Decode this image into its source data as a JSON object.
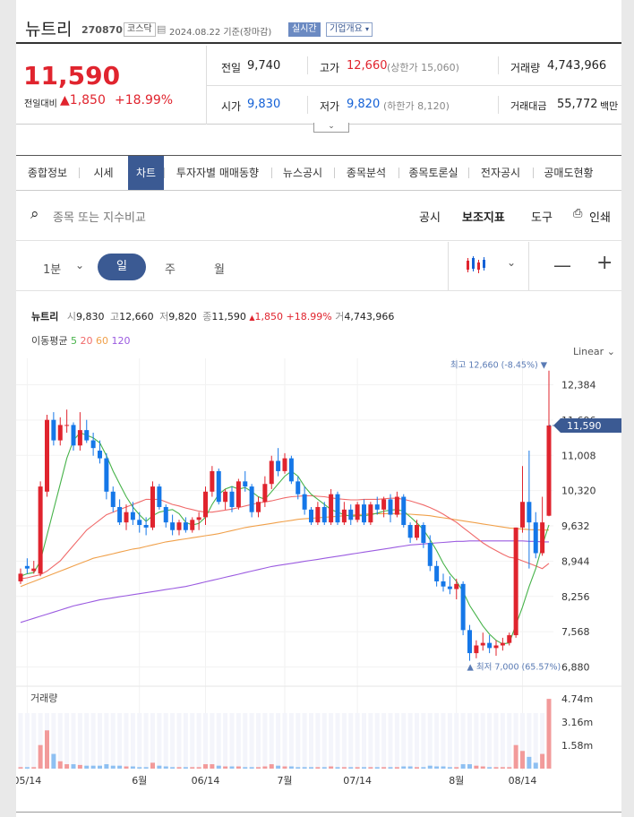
{
  "stock": {
    "name": "뉴트리",
    "code": "270870",
    "market": "코스닥",
    "date_basis": "2024.08.22 기준(장마감)",
    "realtime": "실시간",
    "company_info": "기업개요"
  },
  "quote": {
    "price": "11,590",
    "change_label": "전일대비",
    "change": "1,850",
    "change_pct": "+18.99%",
    "prev_label": "전일",
    "prev": "9,740",
    "high_label": "고가",
    "high": "12,660",
    "upper_limit": "(상한가 15,060)",
    "volume_label": "거래량",
    "volume": "4,743,966",
    "open_label": "시가",
    "open": "9,830",
    "low_label": "저가",
    "low": "9,820",
    "lower_limit": "(하한가 8,120)",
    "amount_label": "거래대금",
    "amount": "55,772",
    "amount_unit": "백만"
  },
  "tabs": [
    "종합정보",
    "시세",
    "차트",
    "투자자별 매매동향",
    "뉴스공시",
    "종목분석",
    "종목토론실",
    "전자공시",
    "공매도현황"
  ],
  "active_tab": "차트",
  "toolbar": {
    "search_placeholder": "종목 또는 지수비교",
    "notice": "공시",
    "indicator": "보조지표",
    "tools": "도구",
    "print": "인쇄"
  },
  "periods": {
    "minute": "1분",
    "day": "일",
    "week": "주",
    "month": "월"
  },
  "chart_header": {
    "name": "뉴트리",
    "open_label": "시",
    "open": "9,830",
    "high_label": "고",
    "high": "12,660",
    "low_label": "저",
    "low": "9,820",
    "close_label": "종",
    "close": "11,590",
    "change": "1,850",
    "pct": "+18.99%",
    "vol_label": "거",
    "vol": "4,743,966"
  },
  "ma": {
    "label": "이동평균",
    "periods": [
      "5",
      "20",
      "60",
      "120"
    ],
    "colors": [
      "#47b34a",
      "#f06a6a",
      "#f0a04a",
      "#9b5be0"
    ]
  },
  "scale_mode": "Linear",
  "chart_data": {
    "type": "candlestick",
    "y_ticks": [
      "12,384",
      "11,696",
      "11,008",
      "10,320",
      "9,632",
      "8,944",
      "8,256",
      "7,568",
      "6,880"
    ],
    "y_tick_values": [
      12384,
      11696,
      11008,
      10320,
      9632,
      8944,
      8256,
      7568,
      6880
    ],
    "ylim": [
      6610,
      12900
    ],
    "current_price": "11,590",
    "current_value": 11590,
    "max_label": "최고 12,660 (-8.45%)",
    "max_value": 12660,
    "min_label": "최저 7,000 (65.57%)",
    "min_value": 7000,
    "x_ticks": [
      "05/14",
      "6월",
      "06/14",
      "7월",
      "07/14",
      "8월",
      "08/14"
    ],
    "x_tick_index": [
      1,
      18,
      28,
      40,
      51,
      66,
      76
    ],
    "ohlc": [
      [
        8550,
        8800,
        8500,
        8700
      ],
      [
        8850,
        9000,
        8700,
        8800
      ],
      [
        8750,
        8950,
        8700,
        8800
      ],
      [
        8700,
        10500,
        8650,
        10400
      ],
      [
        10300,
        11800,
        10200,
        11700
      ],
      [
        11700,
        11850,
        11200,
        11300
      ],
      [
        11300,
        11750,
        11200,
        11600
      ],
      [
        11600,
        11900,
        11450,
        11600
      ],
      [
        11600,
        11650,
        11100,
        11200
      ],
      [
        11200,
        11850,
        11100,
        11500
      ],
      [
        11500,
        11700,
        11250,
        11300
      ],
      [
        11300,
        11450,
        11000,
        11150
      ],
      [
        11100,
        11300,
        10850,
        10950
      ],
      [
        10950,
        11050,
        10150,
        10300
      ],
      [
        10300,
        10400,
        9900,
        10000
      ],
      [
        10000,
        10150,
        9650,
        9700
      ],
      [
        9700,
        10050,
        9550,
        9900
      ],
      [
        9900,
        10100,
        9650,
        9750
      ],
      [
        9750,
        9900,
        9500,
        9650
      ],
      [
        9650,
        9800,
        9450,
        9600
      ],
      [
        9600,
        10500,
        9550,
        10400
      ],
      [
        10400,
        10450,
        9950,
        10000
      ],
      [
        10000,
        10050,
        9600,
        9700
      ],
      [
        9700,
        9850,
        9450,
        9550
      ],
      [
        9550,
        9750,
        9450,
        9700
      ],
      [
        9700,
        9800,
        9500,
        9550
      ],
      [
        9550,
        9800,
        9500,
        9750
      ],
      [
        9750,
        9900,
        9550,
        9800
      ],
      [
        9800,
        10400,
        9650,
        10300
      ],
      [
        10300,
        10800,
        10200,
        10700
      ],
      [
        10700,
        10750,
        10050,
        10100
      ],
      [
        10100,
        10350,
        9950,
        10300
      ],
      [
        10300,
        10400,
        9900,
        10000
      ],
      [
        10000,
        10550,
        9950,
        10500
      ],
      [
        10500,
        10700,
        10300,
        10400
      ],
      [
        10400,
        10450,
        9800,
        9900
      ],
      [
        9900,
        10200,
        9800,
        10100
      ],
      [
        10100,
        10600,
        10000,
        10450
      ],
      [
        10450,
        11000,
        10350,
        10900
      ],
      [
        10900,
        11150,
        10600,
        10700
      ],
      [
        10700,
        11050,
        10650,
        10950
      ],
      [
        10950,
        11000,
        10450,
        10500
      ],
      [
        10500,
        10600,
        10150,
        10250
      ],
      [
        10250,
        10400,
        9850,
        9950
      ],
      [
        9950,
        10000,
        9650,
        9700
      ],
      [
        9700,
        10100,
        9650,
        10000
      ],
      [
        10000,
        10100,
        9650,
        9700
      ],
      [
        9700,
        10350,
        9650,
        10250
      ],
      [
        10250,
        10300,
        9650,
        9700
      ],
      [
        9700,
        10100,
        9650,
        9950
      ],
      [
        9950,
        10050,
        9650,
        9750
      ],
      [
        9750,
        10100,
        9700,
        10050
      ],
      [
        10050,
        10150,
        9650,
        9700
      ],
      [
        9700,
        10100,
        9650,
        10050
      ],
      [
        10050,
        10200,
        9850,
        9950
      ],
      [
        9950,
        10200,
        9800,
        10150
      ],
      [
        10150,
        10250,
        9700,
        9850
      ],
      [
        9850,
        10300,
        9800,
        10200
      ],
      [
        10200,
        10250,
        9600,
        9650
      ],
      [
        9650,
        9700,
        9300,
        9400
      ],
      [
        9400,
        9750,
        9350,
        9650
      ],
      [
        9650,
        9700,
        9200,
        9300
      ],
      [
        9300,
        9450,
        8750,
        8850
      ],
      [
        8850,
        8950,
        8450,
        8550
      ],
      [
        8550,
        8700,
        8350,
        8450
      ],
      [
        8450,
        8650,
        8300,
        8400
      ],
      [
        8400,
        8600,
        8200,
        8500
      ],
      [
        8500,
        8550,
        7500,
        7600
      ],
      [
        7600,
        7700,
        7000,
        7150
      ],
      [
        7150,
        7400,
        7050,
        7300
      ],
      [
        7300,
        7550,
        7200,
        7350
      ],
      [
        7350,
        7500,
        7150,
        7250
      ],
      [
        7250,
        7400,
        7100,
        7300
      ],
      [
        7300,
        7450,
        7200,
        7350
      ],
      [
        7350,
        7550,
        7300,
        7500
      ],
      [
        7500,
        9600,
        7450,
        9600
      ],
      [
        9600,
        10800,
        9500,
        10100
      ],
      [
        10100,
        11100,
        8800,
        9700
      ],
      [
        9700,
        9900,
        9000,
        9100
      ],
      [
        9100,
        10200,
        9050,
        9700
      ],
      [
        9830,
        12660,
        9820,
        11590
      ]
    ],
    "ma5": [
      8650,
      8700,
      8720,
      8950,
      9450,
      9950,
      10450,
      10950,
      11300,
      11450,
      11400,
      11350,
      11250,
      11000,
      10700,
      10450,
      10200,
      10000,
      9850,
      9720,
      9830,
      9900,
      9930,
      9950,
      9870,
      9700,
      9650,
      9680,
      9800,
      10050,
      10250,
      10350,
      10400,
      10350,
      10380,
      10300,
      10200,
      10150,
      10300,
      10450,
      10600,
      10700,
      10600,
      10400,
      10250,
      10150,
      10050,
      9950,
      9900,
      9850,
      9820,
      9830,
      9830,
      9850,
      9880,
      9920,
      9940,
      9950,
      9920,
      9810,
      9690,
      9560,
      9360,
      9150,
      8900,
      8700,
      8550,
      8350,
      8080,
      7880,
      7680,
      7520,
      7400,
      7330,
      7350,
      7700,
      8050,
      8450,
      8800,
      9250,
      9650
    ],
    "ma20": [
      8600,
      8620,
      8650,
      8680,
      8750,
      8850,
      8950,
      9100,
      9250,
      9400,
      9550,
      9650,
      9750,
      9850,
      9900,
      9950,
      10000,
      10050,
      10100,
      10150,
      10150,
      10150,
      10100,
      10050,
      10020,
      9980,
      9950,
      9920,
      9900,
      9900,
      9920,
      9940,
      9960,
      9990,
      10020,
      10050,
      10080,
      10100,
      10120,
      10150,
      10180,
      10200,
      10210,
      10220,
      10220,
      10210,
      10200,
      10180,
      10160,
      10150,
      10140,
      10140,
      10150,
      10150,
      10150,
      10160,
      10170,
      10170,
      10150,
      10120,
      10080,
      10040,
      9990,
      9930,
      9860,
      9780,
      9700,
      9600,
      9500,
      9400,
      9300,
      9220,
      9150,
      9080,
      9020,
      9000,
      8950,
      8900,
      8850,
      8800,
      8900
    ],
    "ma60": [
      8450,
      8500,
      8550,
      8600,
      8650,
      8700,
      8750,
      8800,
      8850,
      8900,
      8950,
      9000,
      9030,
      9060,
      9090,
      9120,
      9150,
      9180,
      9200,
      9230,
      9260,
      9290,
      9320,
      9340,
      9360,
      9380,
      9400,
      9420,
      9440,
      9460,
      9480,
      9510,
      9540,
      9570,
      9600,
      9620,
      9640,
      9660,
      9680,
      9700,
      9720,
      9740,
      9760,
      9770,
      9780,
      9790,
      9800,
      9810,
      9820,
      9830,
      9840,
      9850,
      9860,
      9870,
      9870,
      9870,
      9870,
      9870,
      9860,
      9860,
      9850,
      9840,
      9830,
      9810,
      9790,
      9770,
      9750,
      9730,
      9710,
      9690,
      9670,
      9650,
      9630,
      9610,
      9590,
      9580,
      9570,
      9560,
      9555,
      9550,
      9550
    ],
    "ma120": [
      7750,
      7790,
      7830,
      7870,
      7910,
      7950,
      7990,
      8030,
      8070,
      8100,
      8130,
      8160,
      8190,
      8210,
      8230,
      8250,
      8270,
      8290,
      8310,
      8330,
      8350,
      8370,
      8390,
      8410,
      8430,
      8450,
      8480,
      8510,
      8540,
      8570,
      8600,
      8630,
      8660,
      8690,
      8720,
      8750,
      8780,
      8810,
      8840,
      8860,
      8880,
      8900,
      8920,
      8940,
      8960,
      8980,
      9000,
      9020,
      9040,
      9060,
      9080,
      9100,
      9120,
      9140,
      9160,
      9180,
      9200,
      9220,
      9240,
      9260,
      9270,
      9280,
      9290,
      9300,
      9310,
      9320,
      9330,
      9330,
      9340,
      9340,
      9340,
      9340,
      9340,
      9340,
      9340,
      9340,
      9340,
      9330,
      9330,
      9320,
      9320
    ],
    "volume": {
      "label": "거래량",
      "ticks": [
        "4.74m",
        "3.16m",
        "1.58m"
      ],
      "tick_values": [
        4.74,
        3.16,
        1.58
      ],
      "max": 5.6,
      "values": [
        0.1,
        0.1,
        0.1,
        1.6,
        2.6,
        1.0,
        0.5,
        0.3,
        0.3,
        0.25,
        0.2,
        0.2,
        0.2,
        0.3,
        0.2,
        0.2,
        0.15,
        0.15,
        0.1,
        0.1,
        0.4,
        0.2,
        0.15,
        0.1,
        0.1,
        0.1,
        0.1,
        0.1,
        0.3,
        0.3,
        0.2,
        0.15,
        0.15,
        0.15,
        0.1,
        0.1,
        0.1,
        0.15,
        0.3,
        0.2,
        0.15,
        0.15,
        0.1,
        0.1,
        0.1,
        0.1,
        0.1,
        0.15,
        0.1,
        0.1,
        0.1,
        0.1,
        0.1,
        0.1,
        0.1,
        0.1,
        0.1,
        0.1,
        0.15,
        0.15,
        0.1,
        0.1,
        0.2,
        0.15,
        0.15,
        0.1,
        0.1,
        0.3,
        0.3,
        0.2,
        0.15,
        0.1,
        0.1,
        0.1,
        0.1,
        1.6,
        1.2,
        0.8,
        0.4,
        1.0,
        4.74
      ]
    }
  }
}
